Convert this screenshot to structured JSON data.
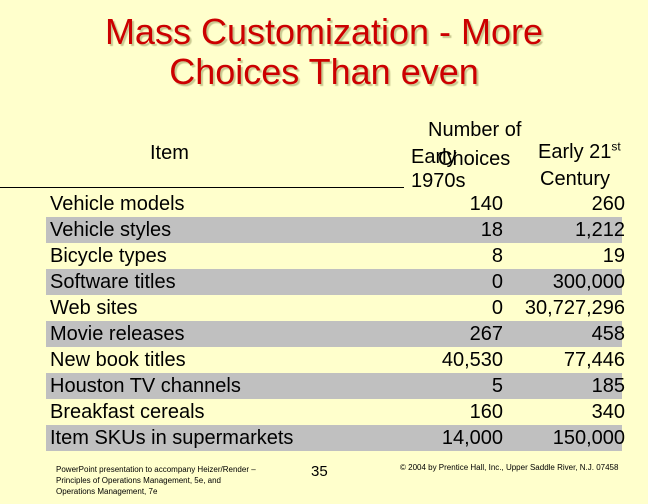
{
  "title": "Mass Customization - More\nChoices Than even",
  "headers": {
    "item": "Item",
    "number_of_choices": "Number of",
    "choices": "Choices",
    "early_1970s": "Early",
    "early_1970s_2": "1970s",
    "early_21st": "Early 21",
    "early_21st_sup": "st",
    "century": "Century"
  },
  "rows": [
    {
      "item": "Vehicle models",
      "v1970": "140",
      "v21": "260"
    },
    {
      "item": "Vehicle styles",
      "v1970": "18",
      "v21": "1,212"
    },
    {
      "item": "Bicycle types",
      "v1970": "8",
      "v21": "19"
    },
    {
      "item": "Software titles",
      "v1970": "0",
      "v21": "300,000"
    },
    {
      "item": "Web sites",
      "v1970": "0",
      "v21": "30,727,296"
    },
    {
      "item": "Movie releases",
      "v1970": "267",
      "v21": "458"
    },
    {
      "item": "New book titles",
      "v1970": "40,530",
      "v21": "77,446"
    },
    {
      "item": "Houston TV channels",
      "v1970": "5",
      "v21": "185"
    },
    {
      "item": "Breakfast cereals",
      "v1970": "160",
      "v21": "340"
    },
    {
      "item": "Item SKUs in supermarkets",
      "v1970": "14,000",
      "v21": "150,000"
    }
  ],
  "footer": {
    "left": "PowerPoint presentation to accompany Heizer/Render – Principles of Operations Management, 5e, and Operations Management, 7e",
    "page_number": "35",
    "right": "© 2004 by Prentice Hall, Inc., Upper Saddle River, N.J. 07458"
  },
  "colors": {
    "background": "#ffffcc",
    "title": "#cc0000",
    "stripe": "#c0c0c0"
  }
}
